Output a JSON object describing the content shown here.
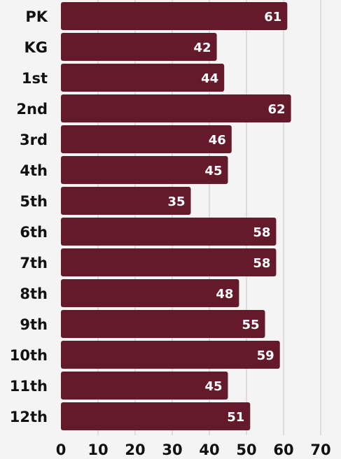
{
  "chart_data": {
    "type": "bar",
    "orientation": "horizontal",
    "categories": [
      "PK",
      "KG",
      "1st",
      "2nd",
      "3rd",
      "4th",
      "5th",
      "6th",
      "7th",
      "8th",
      "9th",
      "10th",
      "11th",
      "12th"
    ],
    "values": [
      61,
      42,
      44,
      62,
      46,
      45,
      35,
      58,
      58,
      48,
      55,
      59,
      45,
      51
    ],
    "title": "",
    "xlabel": "",
    "ylabel": "",
    "xlim": [
      0,
      70
    ],
    "xticks": [
      0,
      10,
      20,
      30,
      40,
      50,
      60,
      70
    ],
    "grid": true,
    "legend": "none",
    "data_labels": true,
    "colors": {
      "bar": "#651a2c",
      "value_label": "#ffffff",
      "axis_text": "#111111",
      "grid": "#d6d4d4",
      "background": "#f5f4f4"
    }
  }
}
